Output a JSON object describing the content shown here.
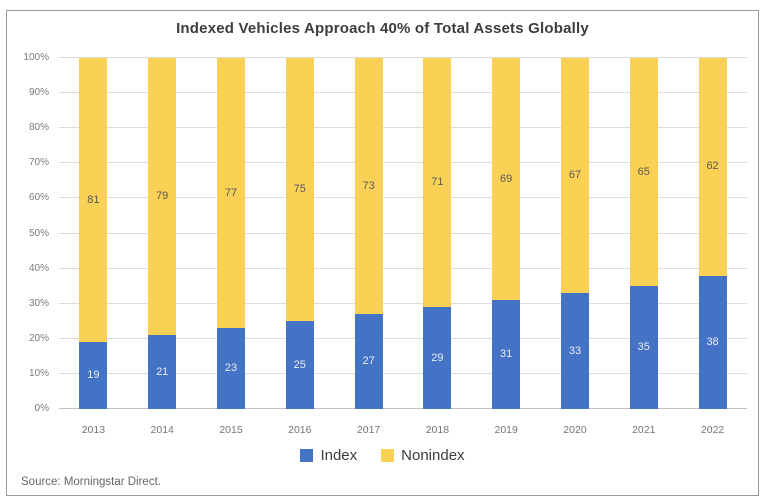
{
  "page": {
    "source_note": "Source: Morningstar Direct."
  },
  "chart_data": {
    "type": "bar",
    "stacked": true,
    "percent_stacked": true,
    "title": "Indexed Vehicles Approach 40% of Total Assets Globally",
    "categories": [
      "2013",
      "2014",
      "2015",
      "2016",
      "2017",
      "2018",
      "2019",
      "2020",
      "2021",
      "2022"
    ],
    "series": [
      {
        "name": "Index",
        "color": "#4472C4",
        "label_color": "#e9edf6",
        "values": [
          19,
          21,
          23,
          25,
          27,
          29,
          31,
          33,
          35,
          38
        ]
      },
      {
        "name": "Nonindex",
        "color": "#FBD155",
        "label_color": "#595959",
        "values": [
          81,
          79,
          77,
          75,
          73,
          71,
          69,
          67,
          65,
          62
        ]
      }
    ],
    "y_ticks": [
      "0%",
      "10%",
      "20%",
      "30%",
      "40%",
      "50%",
      "60%",
      "70%",
      "80%",
      "90%",
      "100%"
    ],
    "ylim": [
      0,
      100
    ],
    "xlabel": "",
    "ylabel": "",
    "grid": true,
    "gridline_color": "#dcdcdc",
    "baseline_color": "#c2c2c2",
    "axis_text_color": "#757575",
    "legend_position": "bottom"
  }
}
